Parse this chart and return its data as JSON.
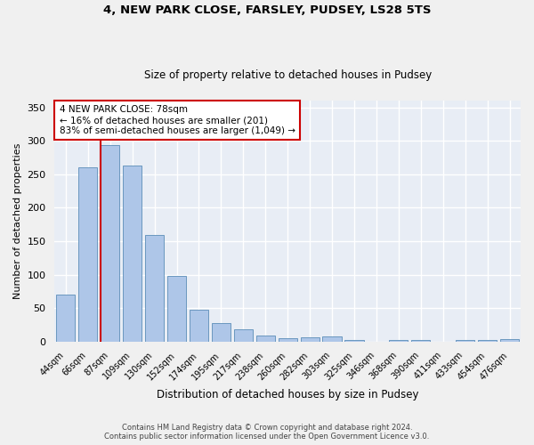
{
  "title1": "4, NEW PARK CLOSE, FARSLEY, PUDSEY, LS28 5TS",
  "title2": "Size of property relative to detached houses in Pudsey",
  "xlabel": "Distribution of detached houses by size in Pudsey",
  "ylabel": "Number of detached properties",
  "categories": [
    "44sqm",
    "66sqm",
    "87sqm",
    "109sqm",
    "130sqm",
    "152sqm",
    "174sqm",
    "195sqm",
    "217sqm",
    "238sqm",
    "260sqm",
    "282sqm",
    "303sqm",
    "325sqm",
    "346sqm",
    "368sqm",
    "390sqm",
    "411sqm",
    "433sqm",
    "454sqm",
    "476sqm"
  ],
  "values": [
    70,
    260,
    293,
    263,
    160,
    98,
    48,
    28,
    18,
    10,
    6,
    7,
    8,
    3,
    0,
    3,
    3,
    0,
    3,
    3,
    4
  ],
  "bar_color": "#aec6e8",
  "bar_edge_color": "#5b8db8",
  "vline_color": "#cc0000",
  "annotation_title": "4 NEW PARK CLOSE: 78sqm",
  "annotation_line1": "← 16% of detached houses are smaller (201)",
  "annotation_line2": "83% of semi-detached houses are larger (1,049) →",
  "footnote1": "Contains HM Land Registry data © Crown copyright and database right 2024.",
  "footnote2": "Contains public sector information licensed under the Open Government Licence v3.0.",
  "ylim": [
    0,
    360
  ],
  "yticks": [
    0,
    50,
    100,
    150,
    200,
    250,
    300,
    350
  ],
  "fig_bg_color": "#f0f0f0",
  "plot_bg_color": "#e8edf5"
}
